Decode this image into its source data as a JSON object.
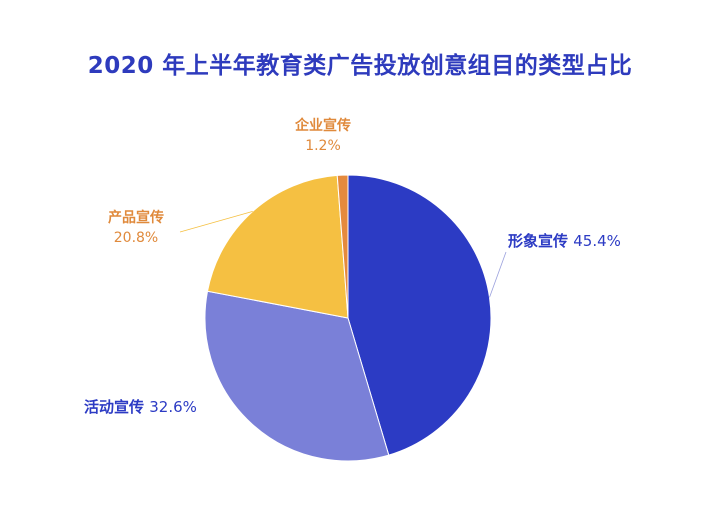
{
  "chart_data": {
    "type": "pie",
    "title": "2020 年上半年教育类广告投放创意组目的类型占比",
    "slices": [
      {
        "name": "形象宣传",
        "value": 45.4,
        "label": "45.4%",
        "color": "#2c3bc4",
        "text_color": "#2c3bc4"
      },
      {
        "name": "活动宣传",
        "value": 32.6,
        "label": "32.6%",
        "color": "#7a80d8",
        "text_color": "#2c3bc4"
      },
      {
        "name": "产品宣传",
        "value": 20.8,
        "label": "20.8%",
        "color": "#f5c042",
        "text_color": "#e08a3c"
      },
      {
        "name": "企业宣传",
        "value": 1.2,
        "label": "1.2%",
        "color": "#e58a3d",
        "text_color": "#e08a3c"
      }
    ],
    "start_angle_deg": 0,
    "direction": "clockwise",
    "label_style": "outside-with-leader-lines",
    "legend": "none"
  }
}
